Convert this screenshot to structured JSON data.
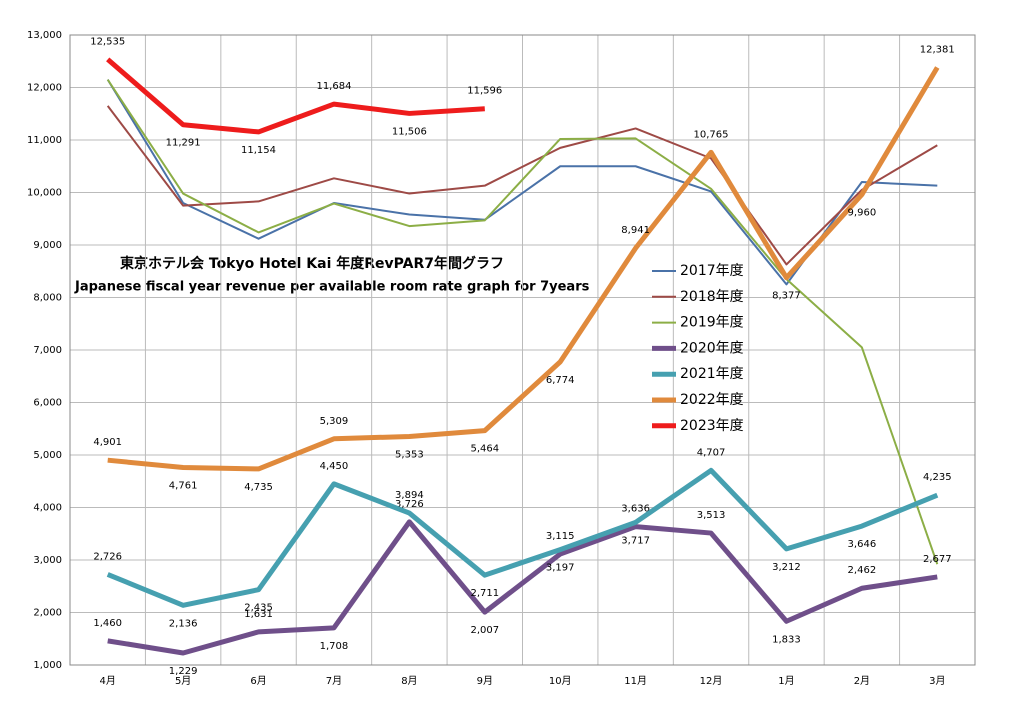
{
  "chart_data": {
    "type": "line",
    "title": "東京ホテル会 Tokyo Hotel Kai  年度RevPAR7年間グラフ",
    "subtitle": "Japanese fiscal year revenue per available room rate graph for 7years",
    "categories": [
      "4月",
      "5月",
      "6月",
      "7月",
      "8月",
      "9月",
      "10月",
      "11月",
      "12月",
      "1月",
      "2月",
      "3月"
    ],
    "ylim": [
      1000,
      13000
    ],
    "yticks": [
      {
        "value": 1000,
        "label": "1,000"
      },
      {
        "value": 2000,
        "label": "2,000"
      },
      {
        "value": 3000,
        "label": "3,000"
      },
      {
        "value": 4000,
        "label": "4,000"
      },
      {
        "value": 5000,
        "label": "5,000"
      },
      {
        "value": 6000,
        "label": "6,000"
      },
      {
        "value": 7000,
        "label": "7,000"
      },
      {
        "value": 8000,
        "label": "8,000"
      },
      {
        "value": 9000,
        "label": "9,000"
      },
      {
        "value": 10000,
        "label": "10,000"
      },
      {
        "value": 11000,
        "label": "11,000"
      },
      {
        "value": 12000,
        "label": "12,000"
      },
      {
        "value": 13000,
        "label": "13,000"
      }
    ],
    "grid": true,
    "legend": "right",
    "series": [
      {
        "name": "2017年度",
        "color": "#4a72a8",
        "width": 2,
        "values": [
          12150,
          9800,
          9120,
          9800,
          9580,
          9480,
          10500,
          10500,
          10020,
          8250,
          10200,
          10130
        ]
      },
      {
        "name": "2018年度",
        "color": "#9e4a46",
        "width": 2,
        "values": [
          11650,
          9750,
          9830,
          10270,
          9980,
          10130,
          10850,
          11220,
          10650,
          8630,
          10050,
          10900
        ]
      },
      {
        "name": "2019年度",
        "color": "#8cae46",
        "width": 2,
        "values": [
          12150,
          9980,
          9240,
          9790,
          9360,
          9470,
          11020,
          11030,
          10070,
          8350,
          7050,
          2920
        ]
      },
      {
        "name": "2020年度",
        "color": "#6f4f8a",
        "width": 5,
        "values": [
          1460,
          1229,
          1631,
          1708,
          3726,
          2007,
          3115,
          3636,
          3513,
          1833,
          2462,
          2677
        ],
        "value_labels": [
          "1,460",
          "1,229",
          "1,631",
          "1,708",
          "3,726",
          "2,007",
          "3,115",
          "3,636",
          "3,513",
          "1,833",
          "2,462",
          "2,677"
        ]
      },
      {
        "name": "2021年度",
        "color": "#46a0b0",
        "width": 5,
        "values": [
          2726,
          2136,
          2435,
          4450,
          3894,
          2711,
          3197,
          3717,
          4707,
          3212,
          3646,
          4235
        ],
        "value_labels": [
          "2,726",
          "2,136",
          "2,435",
          "4,450",
          "3,894",
          "2,711",
          "3,197",
          "3,717",
          "4,707",
          "3,212",
          "3,646",
          "4,235"
        ]
      },
      {
        "name": "2022年度",
        "color": "#e08a3c",
        "width": 5,
        "values": [
          4901,
          4761,
          4735,
          5309,
          5353,
          5464,
          6774,
          8941,
          10765,
          8377,
          9960,
          12381
        ],
        "value_labels": [
          "4,901",
          "4,761",
          "4,735",
          "5,309",
          "5,353",
          "5,464",
          "6,774",
          "8,941",
          "10,765",
          "8,377",
          "9,960",
          "12,381"
        ]
      },
      {
        "name": "2023年度",
        "color": "#ee1c1c",
        "width": 5,
        "values": [
          12535,
          11291,
          11154,
          11684,
          11506,
          11596,
          null,
          null,
          null,
          null,
          null,
          null
        ],
        "value_labels": [
          "12,535",
          "11,291",
          "11,154",
          "11,684",
          "11,506",
          "11,596",
          null,
          null,
          null,
          null,
          null,
          null
        ]
      }
    ]
  }
}
